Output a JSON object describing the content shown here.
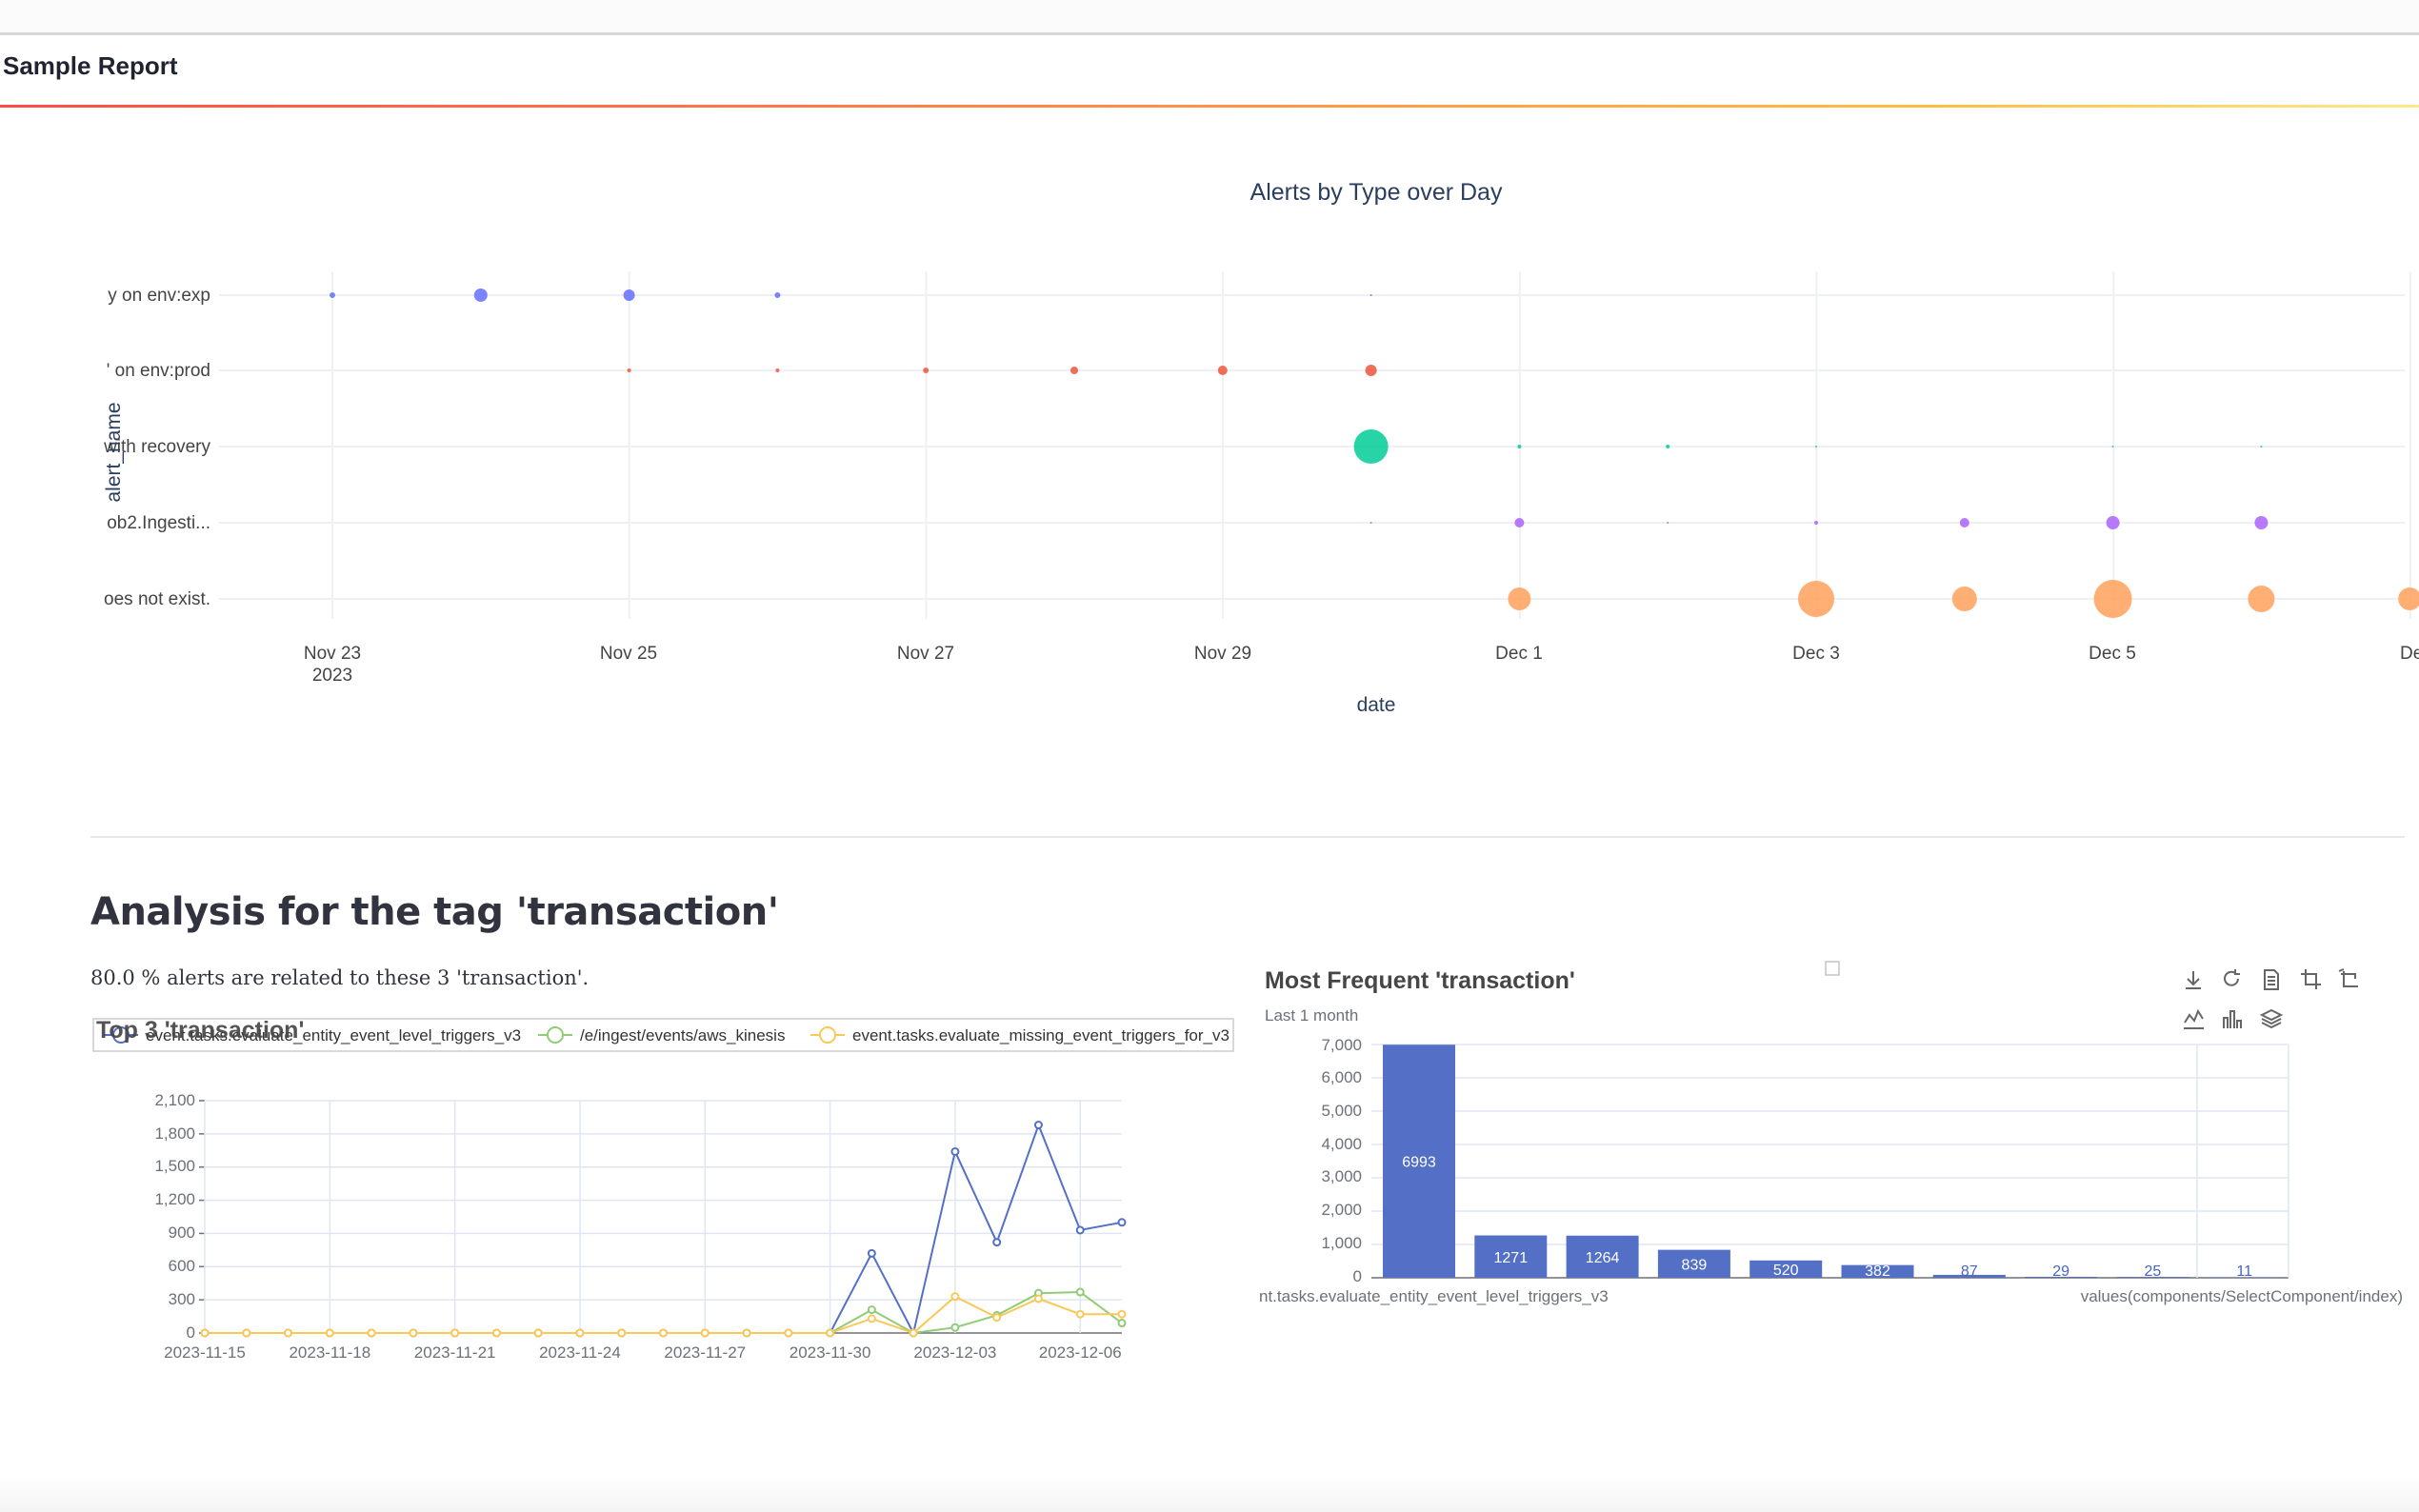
{
  "page": {
    "title": "Sample Report"
  },
  "colors": {
    "accent_start": "#ff4b4b",
    "accent_end": "#ffe98a"
  },
  "section": {
    "heading": "Analysis for the tag 'transaction'",
    "summary": "80.0 % alerts are related to these 3 'transaction'."
  },
  "bubble_chart": {
    "title": "Alerts by Type over Day",
    "xlabel": "date",
    "ylabel": "alert_name",
    "x_ticks": [
      "Nov 23",
      "Nov 25",
      "Nov 27",
      "Nov 29",
      "Dec 1",
      "Dec 3",
      "Dec 5",
      "De"
    ],
    "x_year": "2023"
  },
  "line_chart": {
    "title": "Top 3 'transaction'",
    "y_ticks": [
      "2,100",
      "1,800",
      "1,500",
      "1,200",
      "900",
      "600",
      "300",
      "0"
    ]
  },
  "bar_chart": {
    "title": "Most Frequent 'transaction'",
    "subtitle": "Last 1 month",
    "y_ticks": [
      "7,000",
      "6,000",
      "5,000",
      "4,000",
      "3,000",
      "2,000",
      "1,000",
      "0"
    ],
    "x_left_label": "nt.tasks.evaluate_entity_event_level_triggers_v3",
    "x_right_label": "values(components/SelectComponent/index)",
    "toolbox": {
      "save": "download-icon",
      "restore": "refresh-icon",
      "data_view": "document-icon",
      "zoom": "zoom-select-icon",
      "zoom_reset": "zoom-reset-icon",
      "line": "line-chart-icon",
      "bar": "bar-chart-icon",
      "stack": "stack-icon"
    }
  },
  "chart_data": [
    {
      "type": "scatter",
      "title": "Alerts by Type over Day",
      "xlabel": "date",
      "ylabel": "alert_name",
      "categories": [
        "y on env:exp",
        "' on env:prod",
        "with recovery",
        "ob2.Ingesti...",
        "oes not exist."
      ],
      "x_ticks": [
        "Nov 23",
        "Nov 25",
        "Nov 27",
        "Nov 29",
        "Dec 1",
        "Dec 3",
        "Dec 5",
        "De"
      ],
      "grid": true,
      "series": [
        {
          "color": "#636efa",
          "points": [
            {
              "x": "2023-11-23",
              "y": "y on env:exp",
              "size": 3
            },
            {
              "x": "2023-11-24",
              "y": "y on env:exp",
              "size": 7
            },
            {
              "x": "2023-11-25",
              "y": "y on env:exp",
              "size": 6
            },
            {
              "x": "2023-11-26",
              "y": "y on env:exp",
              "size": 3
            },
            {
              "x": "2023-11-30",
              "y": "y on env:exp",
              "size": 1
            }
          ]
        },
        {
          "color": "#ef553b",
          "points": [
            {
              "x": "2023-11-25",
              "y": "' on env:prod",
              "size": 2
            },
            {
              "x": "2023-11-26",
              "y": "' on env:prod",
              "size": 2
            },
            {
              "x": "2023-11-27",
              "y": "' on env:prod",
              "size": 3
            },
            {
              "x": "2023-11-28",
              "y": "' on env:prod",
              "size": 4
            },
            {
              "x": "2023-11-29",
              "y": "' on env:prod",
              "size": 5
            },
            {
              "x": "2023-11-30",
              "y": "' on env:prod",
              "size": 6
            }
          ]
        },
        {
          "color": "#00cc96",
          "points": [
            {
              "x": "2023-11-30",
              "y": "with recovery",
              "size": 18
            },
            {
              "x": "2023-12-01",
              "y": "with recovery",
              "size": 2
            },
            {
              "x": "2023-12-02",
              "y": "with recovery",
              "size": 2
            },
            {
              "x": "2023-12-03",
              "y": "with recovery",
              "size": 1
            },
            {
              "x": "2023-12-05",
              "y": "with recovery",
              "size": 1
            },
            {
              "x": "2023-12-06",
              "y": "with recovery",
              "size": 1
            }
          ]
        },
        {
          "color": "#ab63fa",
          "points": [
            {
              "x": "2023-11-30",
              "y": "ob2.Ingesti...",
              "size": 1
            },
            {
              "x": "2023-12-01",
              "y": "ob2.Ingesti...",
              "size": 5
            },
            {
              "x": "2023-12-02",
              "y": "ob2.Ingesti...",
              "size": 1
            },
            {
              "x": "2023-12-03",
              "y": "ob2.Ingesti...",
              "size": 2
            },
            {
              "x": "2023-12-04",
              "y": "ob2.Ingesti...",
              "size": 5
            },
            {
              "x": "2023-12-05",
              "y": "ob2.Ingesti...",
              "size": 7
            },
            {
              "x": "2023-12-06",
              "y": "ob2.Ingesti...",
              "size": 7
            }
          ]
        },
        {
          "color": "#ffa15a",
          "points": [
            {
              "x": "2023-12-01",
              "y": "oes not exist.",
              "size": 12
            },
            {
              "x": "2023-12-03",
              "y": "oes not exist.",
              "size": 19
            },
            {
              "x": "2023-12-04",
              "y": "oes not exist.",
              "size": 13
            },
            {
              "x": "2023-12-05",
              "y": "oes not exist.",
              "size": 20
            },
            {
              "x": "2023-12-06",
              "y": "oes not exist.",
              "size": 14
            },
            {
              "x": "2023-12-07",
              "y": "oes not exist.",
              "size": 12
            }
          ]
        }
      ]
    },
    {
      "type": "line",
      "title": "Top 3 'transaction'",
      "ylim": [
        0,
        2100
      ],
      "x_ticks": [
        "2023-11-15",
        "2023-11-18",
        "2023-11-21",
        "2023-11-24",
        "2023-11-27",
        "2023-11-30",
        "2023-12-03",
        "2023-12-06"
      ],
      "grid": true,
      "legend": "top",
      "x": [
        "2023-11-15",
        "2023-11-16",
        "2023-11-17",
        "2023-11-18",
        "2023-11-19",
        "2023-11-20",
        "2023-11-21",
        "2023-11-22",
        "2023-11-23",
        "2023-11-24",
        "2023-11-25",
        "2023-11-26",
        "2023-11-27",
        "2023-11-28",
        "2023-11-29",
        "2023-11-30",
        "2023-12-01",
        "2023-12-02",
        "2023-12-03",
        "2023-12-04",
        "2023-12-05",
        "2023-12-06",
        "2023-12-07"
      ],
      "series": [
        {
          "name": "event.tasks.evaluate_entity_event_level_triggers_v3",
          "color": "#5470c6",
          "values": [
            0,
            0,
            0,
            0,
            0,
            0,
            0,
            0,
            0,
            0,
            0,
            0,
            0,
            0,
            0,
            0,
            720,
            0,
            1640,
            820,
            1880,
            930,
            1000
          ]
        },
        {
          "name": "/e/ingest/events/aws_kinesis",
          "color": "#91cc75",
          "values": [
            0,
            0,
            0,
            0,
            0,
            0,
            0,
            0,
            0,
            0,
            0,
            0,
            0,
            0,
            0,
            0,
            210,
            0,
            50,
            160,
            360,
            370,
            90
          ]
        },
        {
          "name": "event.tasks.evaluate_missing_event_triggers_for_v3",
          "color": "#fac858",
          "values": [
            0,
            0,
            0,
            0,
            0,
            0,
            0,
            0,
            0,
            0,
            0,
            0,
            0,
            0,
            0,
            0,
            130,
            0,
            330,
            140,
            310,
            170,
            170
          ]
        }
      ]
    },
    {
      "type": "bar",
      "title": "Most Frequent 'transaction'",
      "subtitle": "Last 1 month",
      "ylim": [
        0,
        7000
      ],
      "color": "#5470c6",
      "values": [
        6993,
        1271,
        1264,
        839,
        520,
        382,
        87,
        29,
        25,
        11
      ],
      "data_labels": [
        "6993",
        "1271",
        "1264",
        "839",
        "520",
        "382",
        "87",
        "29",
        "25",
        "11"
      ]
    }
  ]
}
